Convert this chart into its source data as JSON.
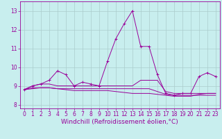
{
  "title": "",
  "xlabel": "Windchill (Refroidissement éolien,°C)",
  "ylabel": "",
  "background_color": "#c8eeee",
  "grid_color": "#aacccc",
  "line_color": "#990099",
  "xlim": [
    -0.5,
    23.5
  ],
  "ylim": [
    7.8,
    13.5
  ],
  "xticks": [
    0,
    1,
    2,
    3,
    4,
    5,
    6,
    7,
    8,
    9,
    10,
    11,
    12,
    13,
    14,
    15,
    16,
    17,
    18,
    19,
    20,
    21,
    22,
    23
  ],
  "yticks": [
    8,
    9,
    10,
    11,
    12,
    13
  ],
  "series": [
    {
      "x": [
        0,
        1,
        2,
        3,
        4,
        5,
        6,
        7,
        8,
        9,
        10,
        11,
        12,
        13,
        14,
        15,
        16,
        17,
        18,
        19,
        20,
        21,
        22,
        23
      ],
      "y": [
        8.8,
        9.0,
        9.1,
        9.3,
        9.8,
        9.6,
        9.0,
        9.2,
        9.1,
        9.0,
        10.3,
        11.5,
        12.3,
        13.0,
        11.1,
        11.1,
        9.6,
        8.6,
        8.5,
        8.6,
        8.6,
        9.5,
        9.7,
        9.5
      ],
      "marker": "+"
    },
    {
      "x": [
        0,
        1,
        2,
        3,
        4,
        5,
        6,
        7,
        8,
        9,
        10,
        11,
        12,
        13,
        14,
        15,
        16,
        17,
        18,
        19,
        20,
        21,
        22,
        23
      ],
      "y": [
        8.8,
        9.0,
        9.1,
        9.1,
        9.0,
        9.0,
        9.0,
        9.0,
        9.0,
        9.0,
        9.0,
        9.0,
        9.0,
        9.0,
        9.3,
        9.3,
        9.3,
        8.7,
        8.6,
        8.6,
        8.6,
        8.6,
        8.6,
        8.6
      ],
      "marker": null
    },
    {
      "x": [
        0,
        1,
        2,
        3,
        4,
        5,
        6,
        7,
        8,
        9,
        10,
        11,
        12,
        13,
        14,
        15,
        16,
        17,
        18,
        19,
        20,
        21,
        22,
        23
      ],
      "y": [
        8.8,
        8.9,
        8.9,
        8.9,
        8.85,
        8.85,
        8.85,
        8.85,
        8.85,
        8.85,
        8.85,
        8.85,
        8.85,
        8.85,
        8.85,
        8.85,
        8.7,
        8.55,
        8.5,
        8.5,
        8.5,
        8.5,
        8.5,
        8.5
      ],
      "marker": null
    },
    {
      "x": [
        0,
        1,
        2,
        3,
        4,
        5,
        6,
        7,
        8,
        9,
        10,
        11,
        12,
        13,
        14,
        15,
        16,
        17,
        18,
        19,
        20,
        21,
        22,
        23
      ],
      "y": [
        8.8,
        8.85,
        8.9,
        8.9,
        8.85,
        8.8,
        8.75,
        8.75,
        8.75,
        8.75,
        8.75,
        8.7,
        8.65,
        8.6,
        8.6,
        8.6,
        8.55,
        8.5,
        8.45,
        8.45,
        8.45,
        8.55,
        8.6,
        8.6
      ],
      "marker": null
    }
  ],
  "font_color": "#990099",
  "tick_fontsize": 5.5,
  "label_fontsize": 6.5
}
